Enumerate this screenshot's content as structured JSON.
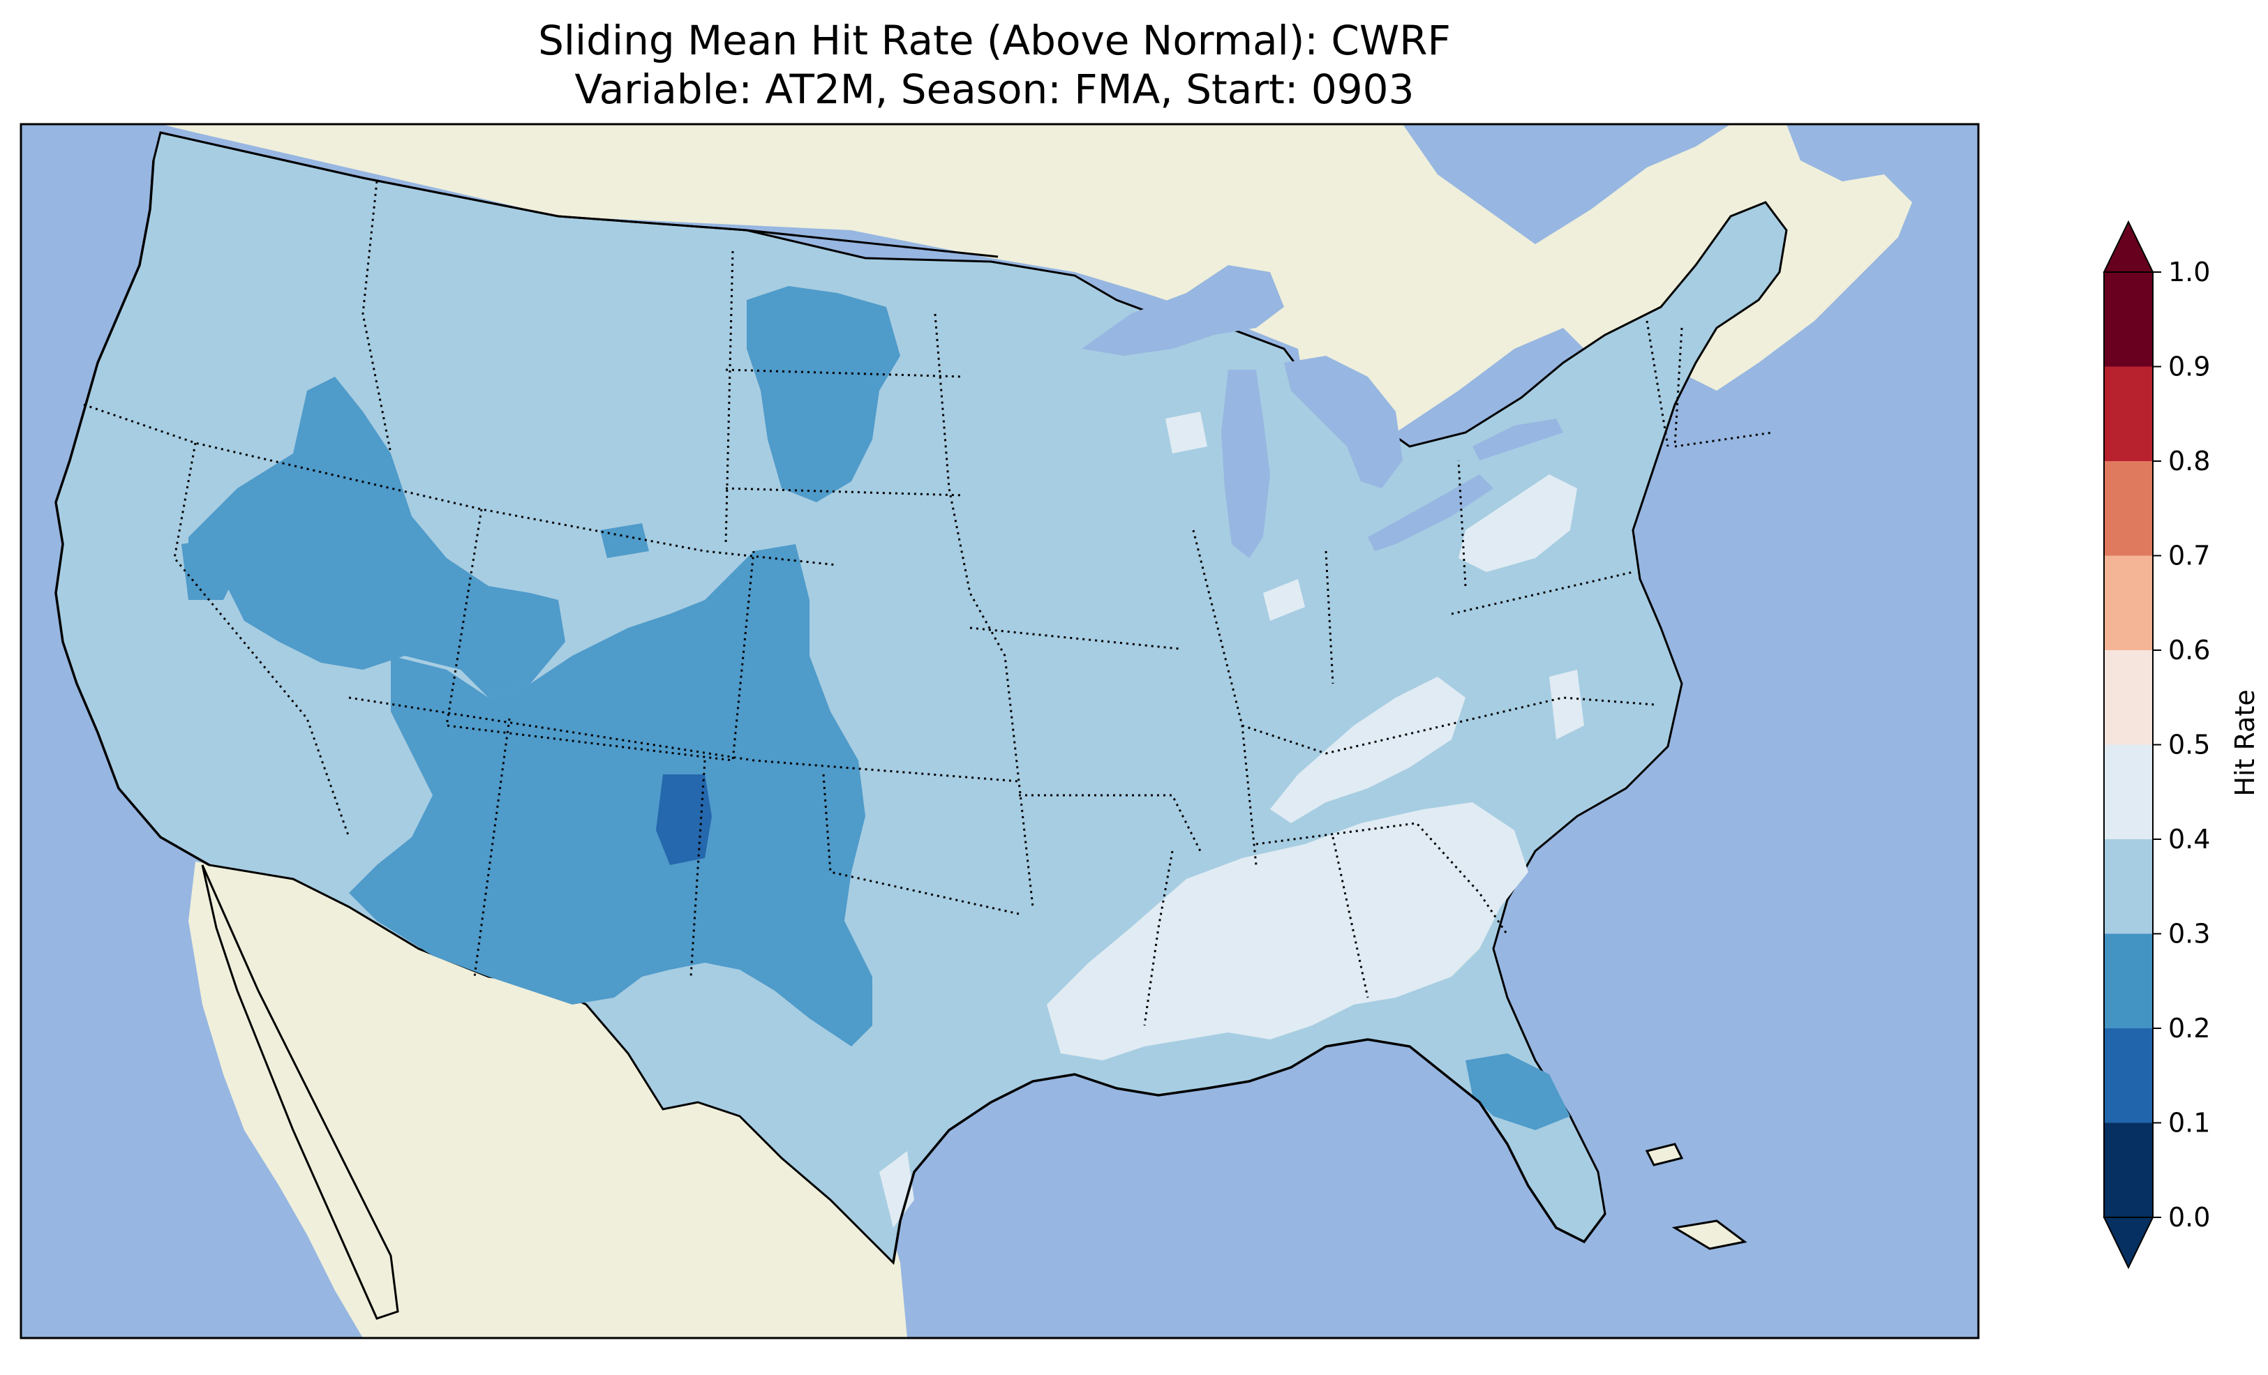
{
  "title": {
    "line1": "Sliding Mean Hit Rate (Above Normal): CWRF",
    "line2": "Variable: AT2M, Season: FMA, Start: 0903"
  },
  "map": {
    "projection": "lambert-conformal",
    "region": "Contiguous United States",
    "colors": {
      "ocean": "#97b6e1",
      "land": "#efefdb",
      "coastline": "#000000",
      "borders": "#000000"
    }
  },
  "colorbar": {
    "label": "Hit Rate",
    "orientation": "vertical",
    "extend": "both",
    "ticks": [
      "0.0",
      "0.1",
      "0.2",
      "0.3",
      "0.4",
      "0.5",
      "0.6",
      "0.7",
      "0.8",
      "0.9",
      "1.0"
    ],
    "colors": [
      "#053061",
      "#2166ac",
      "#4393c3",
      "#92c5de",
      "#d1e5f0",
      "#f7f7f7",
      "#fddbc7",
      "#f4a582",
      "#d6604d",
      "#b2182b",
      "#67001f"
    ],
    "bins": [
      {
        "range": "0.0-0.1",
        "color": "#053061"
      },
      {
        "range": "0.1-0.2",
        "color": "#2166ac"
      },
      {
        "range": "0.2-0.3",
        "color": "#4393c3"
      },
      {
        "range": "0.3-0.4",
        "color": "#a7cde2"
      },
      {
        "range": "0.4-0.5",
        "color": "#e0ebf3"
      },
      {
        "range": "0.5-0.6",
        "color": "#f6e5dc"
      },
      {
        "range": "0.6-0.7",
        "color": "#f4b596"
      },
      {
        "range": "0.7-0.8",
        "color": "#e07a5f"
      },
      {
        "range": "0.8-0.9",
        "color": "#b8222e"
      },
      {
        "range": "0.9-1.0",
        "color": "#6a0020"
      }
    ]
  },
  "regions": [
    {
      "name": "conus-base",
      "hit_rate_bin": "0.3-0.4"
    },
    {
      "name": "great-basin",
      "hit_rate_bin": "0.2-0.3"
    },
    {
      "name": "southwest-rockies",
      "hit_rate_bin": "0.2-0.3"
    },
    {
      "name": "north-dakota",
      "hit_rate_bin": "0.2-0.3"
    },
    {
      "name": "north-florida",
      "hit_rate_bin": "0.2-0.3"
    },
    {
      "name": "northeast-new-mexico",
      "hit_rate_bin": "0.1-0.2"
    },
    {
      "name": "southeast",
      "hit_rate_bin": "0.4-0.5"
    },
    {
      "name": "appalachians",
      "hit_rate_bin": "0.4-0.5"
    },
    {
      "name": "pennsylvania",
      "hit_rate_bin": "0.4-0.5"
    }
  ]
}
